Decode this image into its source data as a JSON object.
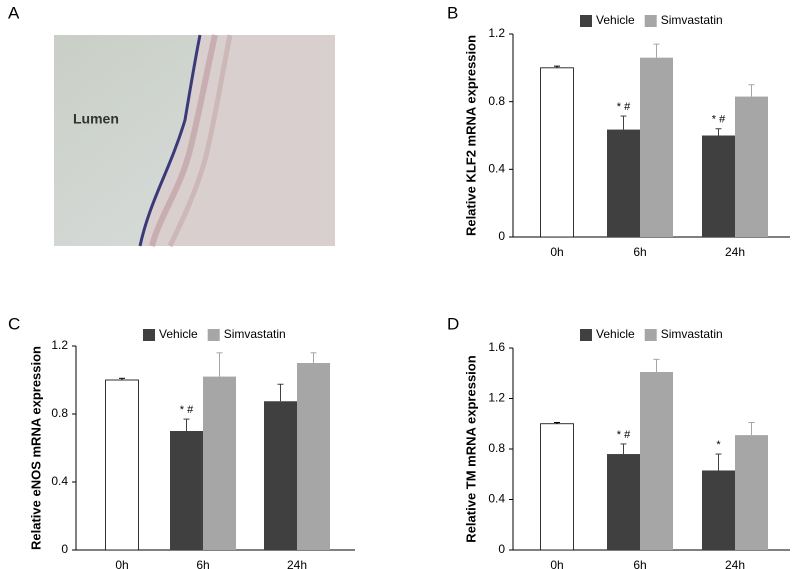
{
  "image_panel": {
    "label": "A",
    "text": "Lumen"
  },
  "chart_data": [
    {
      "type": "bar",
      "panel": "B",
      "ylabel": "Relative KLF2 mRNA expression",
      "categories": [
        "0h",
        "6h",
        "24h"
      ],
      "single_color": "#ffffff",
      "series": [
        {
          "name": "Vehicle",
          "color": "#404040",
          "values": [
            1.0,
            0.635,
            0.6
          ],
          "errors": [
            0.01,
            0.08,
            0.04
          ],
          "marks": [
            null,
            "* #",
            "* #"
          ]
        },
        {
          "name": "Simvastatin",
          "color": "#a6a6a6",
          "values": [
            null,
            1.06,
            0.83
          ],
          "errors": [
            null,
            0.08,
            0.07
          ],
          "marks": [
            null,
            null,
            null
          ]
        }
      ],
      "ylim": [
        0,
        1.2
      ],
      "yticks": [
        0,
        0.4,
        0.8,
        1.2
      ],
      "grid": false
    },
    {
      "type": "bar",
      "panel": "C",
      "ylabel": "Relative eNOS mRNA expression",
      "categories": [
        "0h",
        "6h",
        "24h"
      ],
      "single_color": "#ffffff",
      "series": [
        {
          "name": "Vehicle",
          "color": "#404040",
          "values": [
            1.0,
            0.7,
            0.875
          ],
          "errors": [
            0.01,
            0.07,
            0.1
          ],
          "marks": [
            null,
            "* #",
            null
          ]
        },
        {
          "name": "Simvastatin",
          "color": "#a6a6a6",
          "values": [
            null,
            1.02,
            1.1
          ],
          "errors": [
            null,
            0.14,
            0.06
          ],
          "marks": [
            null,
            null,
            null
          ]
        }
      ],
      "ylim": [
        0,
        1.2
      ],
      "yticks": [
        0,
        0.4,
        0.8,
        1.2
      ],
      "grid": false
    },
    {
      "type": "bar",
      "panel": "D",
      "ylabel": "Relative TM mRNA expression",
      "categories": [
        "0h",
        "6h",
        "24h"
      ],
      "single_color": "#ffffff",
      "series": [
        {
          "name": "Vehicle",
          "color": "#404040",
          "values": [
            1.0,
            0.76,
            0.63
          ],
          "errors": [
            0.01,
            0.08,
            0.13
          ],
          "marks": [
            null,
            "* #",
            "*"
          ]
        },
        {
          "name": "Simvastatin",
          "color": "#a6a6a6",
          "values": [
            null,
            1.41,
            0.91
          ],
          "errors": [
            null,
            0.1,
            0.1
          ],
          "marks": [
            null,
            null,
            null
          ]
        }
      ],
      "ylim": [
        0,
        1.6
      ],
      "yticks": [
        0,
        0.4,
        0.8,
        1.2,
        1.6
      ],
      "grid": false
    }
  ]
}
